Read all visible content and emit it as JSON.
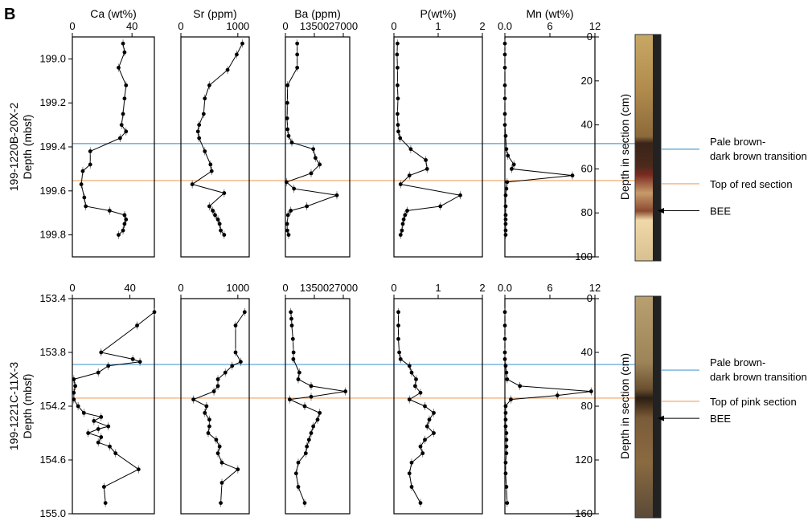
{
  "figure": {
    "panel_letter": "B",
    "legend_items": [
      {
        "key": "transition",
        "color": "#4f9fd1"
      },
      {
        "key": "top",
        "color": "#f0a060"
      },
      {
        "key": "bee",
        "color": "#000000"
      }
    ]
  },
  "chart_data": [
    {
      "type": "line",
      "id": "hole-1220B",
      "ylabel": [
        "199-1220B-20X-2",
        "Depth (mbsf)"
      ],
      "ylim": [
        199.9,
        198.9
      ],
      "yticks": [
        199.0,
        199.2,
        199.4,
        199.6,
        199.8
      ],
      "ytick_labels": [
        "199.0",
        "199.2",
        "199.4",
        "199.6",
        "199.8"
      ],
      "section_axis": {
        "label": "Depth in section (cm)",
        "ticks": [
          "0",
          "20",
          "40",
          "60",
          "80",
          "100"
        ]
      },
      "legend": {
        "transition_line": {
          "depth": 199.385,
          "label": [
            "Pale brown-",
            "dark brown transition"
          ]
        },
        "top_line": {
          "depth": 199.553,
          "label": [
            "Top of red section"
          ]
        },
        "bee_arrow": {
          "depth": 199.69,
          "label": "BEE"
        }
      },
      "series": [
        {
          "name": "Ca (wt%)",
          "xlim": [
            0,
            55
          ],
          "xticks": [
            0,
            40
          ],
          "xtick_labels": [
            "0",
            "40"
          ],
          "depth": [
            198.93,
            198.97,
            199.04,
            199.12,
            199.18,
            199.25,
            199.3,
            199.33,
            199.36,
            199.42,
            199.48,
            199.51,
            199.57,
            199.63,
            199.67,
            199.69,
            199.71,
            199.73,
            199.75,
            199.78,
            199.8
          ],
          "values": [
            34,
            35,
            31,
            36,
            35,
            34,
            33,
            36,
            32,
            12,
            12,
            7,
            6,
            8,
            9,
            25,
            35,
            36,
            35,
            34,
            31
          ]
        },
        {
          "name": "Sr (ppm)",
          "xlim": [
            0,
            1200
          ],
          "xticks": [
            0,
            1000
          ],
          "xtick_labels": [
            "0",
            "1000"
          ],
          "depth": [
            198.93,
            198.98,
            199.05,
            199.12,
            199.18,
            199.25,
            199.3,
            199.33,
            199.36,
            199.42,
            199.48,
            199.51,
            199.57,
            199.61,
            199.67,
            199.69,
            199.71,
            199.73,
            199.75,
            199.78,
            199.8
          ],
          "values": [
            1080,
            980,
            820,
            500,
            420,
            400,
            320,
            300,
            320,
            420,
            520,
            540,
            200,
            760,
            500,
            560,
            600,
            650,
            680,
            700,
            760
          ]
        },
        {
          "name": "Ba (ppm)",
          "xlim": [
            0,
            30000
          ],
          "xticks": [
            0,
            13500,
            27000
          ],
          "xtick_labels": [
            "0",
            "13500",
            "27000"
          ],
          "depth": [
            198.93,
            198.98,
            199.04,
            199.12,
            199.2,
            199.27,
            199.32,
            199.35,
            199.38,
            199.41,
            199.45,
            199.48,
            199.52,
            199.56,
            199.59,
            199.62,
            199.67,
            199.69,
            199.71,
            199.75,
            199.78,
            199.8
          ],
          "values": [
            5500,
            5500,
            5500,
            1000,
            900,
            800,
            1000,
            1500,
            3000,
            13000,
            14000,
            16000,
            12000,
            500,
            4000,
            24000,
            10000,
            2500,
            1200,
            800,
            900,
            1500
          ]
        },
        {
          "name": "P(wt%)",
          "xlim": [
            0,
            2
          ],
          "xticks": [
            0,
            1,
            2
          ],
          "xtick_labels": [
            "0",
            "1",
            "2"
          ],
          "depth": [
            198.93,
            198.98,
            199.04,
            199.12,
            199.18,
            199.25,
            199.3,
            199.33,
            199.36,
            199.41,
            199.46,
            199.5,
            199.53,
            199.57,
            199.62,
            199.67,
            199.69,
            199.71,
            199.73,
            199.75,
            199.78,
            199.8
          ],
          "values": [
            0.08,
            0.07,
            0.08,
            0.08,
            0.09,
            0.08,
            0.09,
            0.1,
            0.14,
            0.38,
            0.72,
            0.75,
            0.35,
            0.15,
            1.5,
            1.05,
            0.3,
            0.25,
            0.22,
            0.2,
            0.18,
            0.15
          ]
        },
        {
          "name": "Mn (wt%)",
          "xlim": [
            0,
            12
          ],
          "xticks": [
            0,
            6,
            12
          ],
          "xtick_labels": [
            "0.0",
            "6",
            "12"
          ],
          "depth": [
            198.93,
            198.98,
            199.04,
            199.12,
            199.18,
            199.25,
            199.3,
            199.35,
            199.41,
            199.44,
            199.48,
            199.5,
            199.53,
            199.56,
            199.59,
            199.62,
            199.67,
            199.71,
            199.73,
            199.75,
            199.78,
            199.8
          ],
          "values": [
            0,
            0,
            0,
            0,
            0,
            0,
            0,
            0.1,
            0.2,
            0.4,
            1.2,
            0.9,
            9.0,
            0.3,
            0.2,
            0.1,
            0.1,
            0.1,
            0.1,
            0.1,
            0.1,
            0.1
          ]
        }
      ]
    },
    {
      "type": "line",
      "id": "hole-1221C",
      "ylabel": [
        "199-1221C-11X-3",
        "Depth (mbsf)"
      ],
      "ylim": [
        155.0,
        153.4
      ],
      "yticks": [
        153.4,
        153.8,
        154.2,
        154.6,
        155.0
      ],
      "ytick_labels": [
        "153.4",
        "153.8",
        "154.2",
        "154.6",
        "155.0"
      ],
      "section_axis": {
        "label": "Depth in section (cm)",
        "ticks": [
          "0",
          "40",
          "80",
          "120",
          "160"
        ]
      },
      "legend": {
        "transition_line": {
          "depth": 153.89,
          "label": [
            "Pale brown-",
            "dark brown transition"
          ]
        },
        "top_line": {
          "depth": 154.14,
          "label": [
            "Top of pink section"
          ]
        },
        "bee_arrow": {
          "depth": 154.29,
          "label": "BEE"
        }
      },
      "series": [
        {
          "name": "Ca (wt%)",
          "xlim": [
            0,
            57
          ],
          "xticks": [
            0,
            40
          ],
          "xtick_labels": [
            "0",
            "40"
          ],
          "depth": [
            153.5,
            153.6,
            153.8,
            153.85,
            153.87,
            153.9,
            153.95,
            154.0,
            154.05,
            154.1,
            154.15,
            154.2,
            154.25,
            154.28,
            154.31,
            154.35,
            154.37,
            154.4,
            154.43,
            154.47,
            154.5,
            154.55,
            154.67,
            154.8,
            154.92
          ],
          "values": [
            57,
            45,
            20,
            42,
            47,
            25,
            18,
            1,
            2,
            1,
            1,
            4,
            8,
            20,
            15,
            25,
            18,
            11,
            20,
            18,
            26,
            30,
            46,
            22,
            23
          ]
        },
        {
          "name": "Sr (ppm)",
          "xlim": [
            0,
            1200
          ],
          "xticks": [
            0,
            1000
          ],
          "xtick_labels": [
            "0",
            "1000"
          ],
          "depth": [
            153.5,
            153.6,
            153.8,
            153.87,
            153.9,
            153.95,
            154.0,
            154.05,
            154.09,
            154.15,
            154.2,
            154.25,
            154.3,
            154.35,
            154.4,
            154.45,
            154.5,
            154.55,
            154.62,
            154.67,
            154.77,
            154.92
          ],
          "values": [
            1120,
            960,
            960,
            1050,
            900,
            780,
            650,
            650,
            580,
            220,
            450,
            420,
            500,
            500,
            480,
            620,
            680,
            650,
            720,
            1000,
            720,
            700
          ]
        },
        {
          "name": "Ba (ppm)",
          "xlim": [
            0,
            30000
          ],
          "xticks": [
            0,
            13500,
            27000
          ],
          "xtick_labels": [
            "0",
            "13500",
            "27000"
          ],
          "depth": [
            153.5,
            153.55,
            153.6,
            153.7,
            153.8,
            153.85,
            153.95,
            154.0,
            154.05,
            154.09,
            154.13,
            154.15,
            154.2,
            154.25,
            154.3,
            154.35,
            154.4,
            154.45,
            154.5,
            154.55,
            154.62,
            154.7,
            154.8,
            154.92
          ],
          "values": [
            2500,
            2800,
            3000,
            3500,
            3800,
            3700,
            6500,
            6000,
            12000,
            28000,
            12000,
            2000,
            9000,
            16000,
            15000,
            13000,
            12000,
            11000,
            10000,
            9500,
            6000,
            5000,
            6000,
            9000
          ]
        },
        {
          "name": "P(wt%)",
          "xlim": [
            0,
            2
          ],
          "xticks": [
            0,
            1,
            2
          ],
          "xtick_labels": [
            "0",
            "1",
            "2"
          ],
          "depth": [
            153.5,
            153.6,
            153.7,
            153.8,
            153.85,
            153.9,
            153.95,
            154.0,
            154.05,
            154.1,
            154.15,
            154.2,
            154.25,
            154.3,
            154.35,
            154.4,
            154.45,
            154.5,
            154.55,
            154.62,
            154.7,
            154.8,
            154.92
          ],
          "values": [
            0.1,
            0.1,
            0.1,
            0.12,
            0.15,
            0.35,
            0.4,
            0.5,
            0.48,
            0.6,
            0.35,
            0.7,
            0.9,
            0.8,
            0.75,
            0.9,
            0.7,
            0.6,
            0.65,
            0.4,
            0.35,
            0.4,
            0.6
          ]
        },
        {
          "name": "Mn (wt%)",
          "xlim": [
            0,
            12
          ],
          "xticks": [
            0,
            6,
            12
          ],
          "xtick_labels": [
            "0.0",
            "6",
            "12"
          ],
          "depth": [
            153.5,
            153.6,
            153.7,
            153.8,
            153.85,
            153.9,
            153.95,
            154.0,
            154.05,
            154.09,
            154.12,
            154.15,
            154.2,
            154.25,
            154.3,
            154.35,
            154.4,
            154.45,
            154.5,
            154.55,
            154.62,
            154.7,
            154.8,
            154.92
          ],
          "values": [
            0,
            0,
            0,
            0,
            0,
            0.1,
            0.2,
            0.3,
            2.0,
            11.5,
            7.0,
            0.8,
            0.1,
            0.1,
            0.1,
            0.1,
            0.2,
            0.2,
            0.2,
            0.2,
            0.1,
            0.1,
            0.2,
            0.3
          ]
        }
      ]
    }
  ]
}
